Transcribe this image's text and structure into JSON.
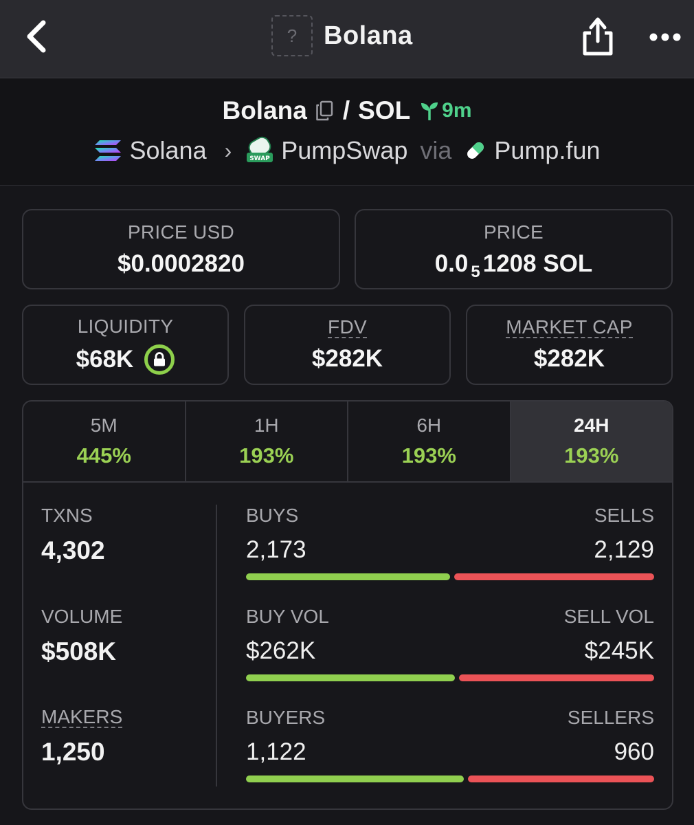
{
  "nav": {
    "title": "Bolana",
    "token_placeholder": "?",
    "icons": {
      "back": "chevron-left-icon",
      "share": "share-icon",
      "more": "more-horizontal-icon"
    }
  },
  "pair": {
    "base": "Bolana",
    "separator": "/",
    "quote": "SOL",
    "age": "9m",
    "chain": "Solana",
    "dex": "PumpSwap",
    "via": "via",
    "launchpad": "Pump.fun",
    "dex_icon_text": "SWAP"
  },
  "prices": {
    "price_usd_label": "PRICE USD",
    "price_usd_value": "$0.0002820",
    "price_label": "PRICE",
    "price_prefix": "0.0",
    "price_zeros": "5",
    "price_suffix": "1208 SOL"
  },
  "metrics": {
    "liquidity_label": "LIQUIDITY",
    "liquidity_value": "$68K",
    "fdv_label": "FDV",
    "fdv_value": "$282K",
    "mcap_label": "MARKET CAP",
    "mcap_value": "$282K"
  },
  "tabs": [
    {
      "label": "5M",
      "value": "445%"
    },
    {
      "label": "1H",
      "value": "193%"
    },
    {
      "label": "6H",
      "value": "193%"
    },
    {
      "label": "24H",
      "value": "193%",
      "active": true
    }
  ],
  "stats": {
    "txns_label": "TXNS",
    "txns_value": "4,302",
    "volume_label": "VOLUME",
    "volume_value": "$508K",
    "makers_label": "MAKERS",
    "makers_value": "1,250",
    "rows": [
      {
        "left_label": "BUYS",
        "right_label": "SELLS",
        "left_value": "2,173",
        "right_value": "2,129",
        "buy_fraction": 0.505
      },
      {
        "left_label": "BUY VOL",
        "right_label": "SELL VOL",
        "left_value": "$262K",
        "right_value": "$245K",
        "buy_fraction": 0.517
      },
      {
        "left_label": "BUYERS",
        "right_label": "SELLERS",
        "left_value": "1,122",
        "right_value": "960",
        "buy_fraction": 0.539
      }
    ]
  },
  "colors": {
    "positive": "#9bd154",
    "buy_bar": "#90cf4f",
    "sell_bar": "#eb5357",
    "age_green": "#4fd18b"
  }
}
